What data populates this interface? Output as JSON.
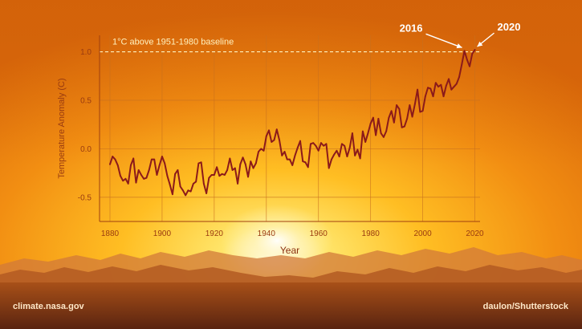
{
  "chart_data": {
    "type": "line",
    "xlabel": "Year",
    "ylabel": "Temperature Anomaly (C)",
    "xlim": [
      1876,
      2022
    ],
    "ylim": [
      -0.75,
      1.17
    ],
    "x_ticks": [
      1880,
      1900,
      1920,
      1940,
      1960,
      1980,
      2000,
      2020
    ],
    "y_ticks": [
      -0.5,
      0.0,
      0.5,
      1.0
    ],
    "y_tick_labels": [
      "-0.5",
      "0.0",
      "0.5",
      "1.0"
    ],
    "grid": true,
    "series": [
      {
        "color": "#8b1a1a",
        "x_start": 1880,
        "values": [
          -0.16,
          -0.08,
          -0.11,
          -0.17,
          -0.28,
          -0.33,
          -0.31,
          -0.36,
          -0.17,
          -0.1,
          -0.35,
          -0.22,
          -0.27,
          -0.31,
          -0.3,
          -0.22,
          -0.11,
          -0.11,
          -0.27,
          -0.17,
          -0.08,
          -0.15,
          -0.28,
          -0.37,
          -0.47,
          -0.26,
          -0.22,
          -0.39,
          -0.43,
          -0.48,
          -0.43,
          -0.44,
          -0.36,
          -0.34,
          -0.15,
          -0.14,
          -0.36,
          -0.46,
          -0.3,
          -0.27,
          -0.27,
          -0.19,
          -0.28,
          -0.26,
          -0.27,
          -0.22,
          -0.1,
          -0.22,
          -0.2,
          -0.36,
          -0.16,
          -0.09,
          -0.16,
          -0.29,
          -0.13,
          -0.2,
          -0.15,
          -0.03,
          0.0,
          -0.02,
          0.13,
          0.19,
          0.07,
          0.09,
          0.2,
          0.09,
          -0.07,
          -0.03,
          -0.11,
          -0.11,
          -0.17,
          -0.07,
          0.01,
          0.08,
          -0.13,
          -0.14,
          -0.19,
          0.05,
          0.06,
          0.03,
          -0.02,
          0.06,
          0.03,
          0.05,
          -0.2,
          -0.11,
          -0.06,
          -0.02,
          -0.08,
          0.05,
          0.03,
          -0.08,
          0.01,
          0.16,
          -0.07,
          -0.01,
          -0.1,
          0.18,
          0.07,
          0.16,
          0.26,
          0.32,
          0.14,
          0.31,
          0.16,
          0.12,
          0.18,
          0.32,
          0.39,
          0.27,
          0.45,
          0.41,
          0.22,
          0.23,
          0.31,
          0.45,
          0.33,
          0.46,
          0.61,
          0.38,
          0.39,
          0.54,
          0.63,
          0.62,
          0.54,
          0.68,
          0.64,
          0.66,
          0.54,
          0.65,
          0.72,
          0.61,
          0.64,
          0.67,
          0.74,
          0.87,
          1.01,
          0.92,
          0.85,
          0.98,
          1.02
        ]
      }
    ],
    "annotations": {
      "baseline_label": "1°C above 1951-1980 baseline",
      "baseline_value": 1.0,
      "callouts": [
        {
          "label": "2016",
          "x": 2016,
          "y": 1.01
        },
        {
          "label": "2020",
          "x": 2020,
          "y": 1.02
        }
      ]
    }
  },
  "credits": {
    "left": "climate.nasa.gov",
    "right": "daulon/Shutterstock"
  },
  "colors": {
    "line": "#8b1a1a",
    "axis": "#a04010",
    "gridline": "#c8701f",
    "baseline": "#fff2c0",
    "label_text": "#9a3b10",
    "credit_text": "#ffe8c8"
  }
}
